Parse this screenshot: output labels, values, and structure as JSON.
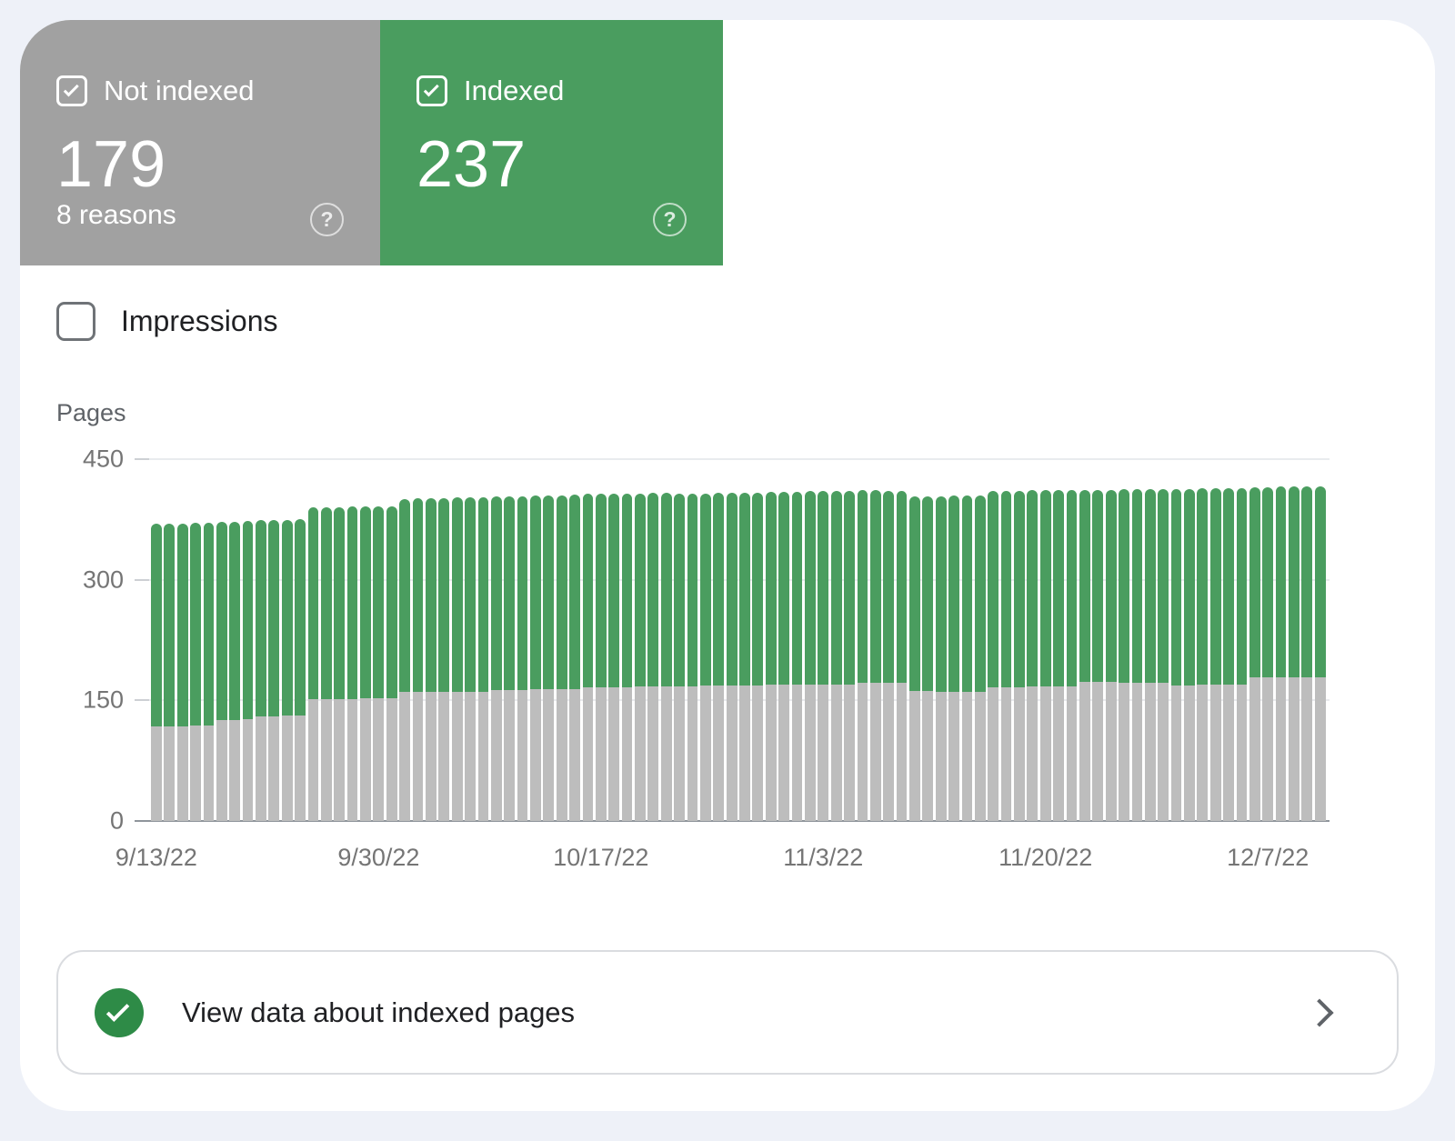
{
  "summary_cards": {
    "not_indexed": {
      "label": "Not indexed",
      "value": "179",
      "sublabel": "8 reasons",
      "checked": true,
      "bg_color": "#a1a1a1",
      "help_glyph": "?"
    },
    "indexed": {
      "label": "Indexed",
      "value": "237",
      "checked": true,
      "bg_color": "#4a9d5f",
      "help_glyph": "?"
    }
  },
  "impressions_toggle": {
    "label": "Impressions",
    "checked": false
  },
  "chart_data": {
    "type": "bar",
    "stacked": true,
    "ylabel": "Pages",
    "ylim": [
      0,
      450
    ],
    "yticks": [
      0,
      150,
      300,
      450
    ],
    "grid": true,
    "x_tick_labels": [
      "9/13/22",
      "9/30/22",
      "10/17/22",
      "11/3/22",
      "11/20/22",
      "12/7/22"
    ],
    "x_tick_positions": [
      0,
      17,
      34,
      51,
      68,
      85
    ],
    "series": [
      {
        "name": "Not indexed",
        "color": "#bdbdbd",
        "values": [
          118,
          118,
          118,
          119,
          119,
          126,
          126,
          127,
          130,
          130,
          131,
          131,
          152,
          152,
          152,
          152,
          153,
          153,
          153,
          160,
          160,
          160,
          161,
          161,
          161,
          161,
          163,
          163,
          163,
          164,
          164,
          164,
          164,
          166,
          166,
          166,
          166,
          167,
          167,
          167,
          167,
          167,
          168,
          168,
          168,
          168,
          168,
          169,
          169,
          169,
          170,
          170,
          170,
          170,
          172,
          172,
          172,
          172,
          162,
          162,
          161,
          161,
          161,
          161,
          166,
          166,
          166,
          167,
          167,
          167,
          167,
          173,
          173,
          173,
          172,
          172,
          172,
          172,
          168,
          168,
          169,
          169,
          169,
          169,
          179,
          179,
          179,
          179,
          179,
          179
        ]
      },
      {
        "name": "Indexed",
        "color": "#4a9d5f",
        "values": [
          252,
          252,
          252,
          252,
          252,
          246,
          246,
          246,
          244,
          244,
          243,
          244,
          238,
          238,
          238,
          239,
          238,
          238,
          238,
          240,
          241,
          241,
          240,
          241,
          241,
          241,
          241,
          241,
          241,
          241,
          241,
          241,
          242,
          241,
          241,
          241,
          241,
          240,
          241,
          241,
          240,
          240,
          239,
          240,
          240,
          240,
          240,
          240,
          240,
          240,
          240,
          240,
          240,
          240,
          239,
          239,
          238,
          238,
          242,
          242,
          243,
          244,
          244,
          244,
          244,
          244,
          244,
          244,
          244,
          244,
          244,
          239,
          239,
          239,
          241,
          241,
          241,
          241,
          245,
          245,
          245,
          245,
          245,
          245,
          236,
          236,
          237,
          237,
          237,
          237
        ]
      }
    ]
  },
  "banner": {
    "text": "View data about indexed pages",
    "icon_color": "#2e8b47"
  }
}
